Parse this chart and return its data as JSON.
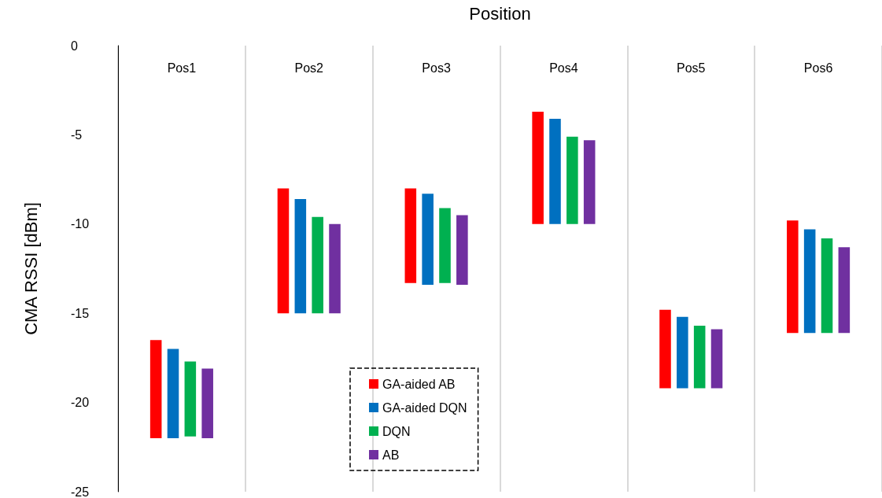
{
  "chart_data": {
    "type": "bar",
    "xlabel": "Position",
    "ylabel": "CMA RSSI [dBm]",
    "categories": [
      "Pos1",
      "Pos2",
      "Pos3",
      "Pos4",
      "Pos5",
      "Pos6"
    ],
    "series": [
      {
        "name": "GA-aided AB",
        "color": "#ff0000",
        "base": [
          -22,
          -15,
          -13.3,
          -10,
          -19.2,
          -16.1
        ],
        "values": [
          5.5,
          7.0,
          5.3,
          6.3,
          4.4,
          6.3
        ]
      },
      {
        "name": "GA-aided DQN",
        "color": "#0070c0",
        "base": [
          -22,
          -15,
          -13.4,
          -10,
          -19.2,
          -16.1
        ],
        "values": [
          5.0,
          6.4,
          5.1,
          5.9,
          4.0,
          5.8
        ]
      },
      {
        "name": "DQN",
        "color": "#00b050",
        "base": [
          -21.9,
          -15,
          -13.3,
          -10,
          -19.2,
          -16.1
        ],
        "values": [
          4.2,
          5.4,
          4.2,
          4.9,
          3.5,
          5.3
        ]
      },
      {
        "name": "AB",
        "color": "#7030a0",
        "base": [
          -22,
          -15,
          -13.4,
          -10,
          -19.2,
          -16.1
        ],
        "values": [
          3.9,
          5.0,
          3.9,
          4.7,
          3.3,
          4.8
        ]
      }
    ],
    "ylim": [
      -25,
      0
    ],
    "yticks": [
      -25,
      -20,
      -15,
      -10,
      -5,
      0
    ],
    "grid": "x",
    "legend": "bottom"
  }
}
